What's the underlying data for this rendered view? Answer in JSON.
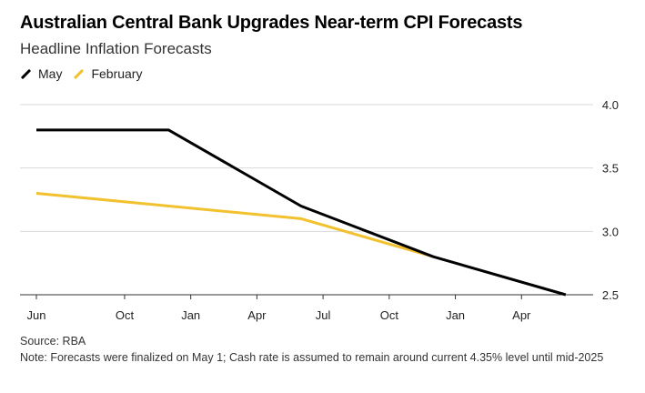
{
  "title": "Australian Central Bank Upgrades Near-term CPI Forecasts",
  "subtitle": "Headline Inflation Forecasts",
  "legend": [
    {
      "label": "May",
      "color": "#000000"
    },
    {
      "label": "February",
      "color": "#f2c12e"
    }
  ],
  "source": "Source: RBA",
  "note": "Note: Forecasts were finalized on May 1; Cash rate is assumed to remain around current 4.35% level until mid-2025",
  "chart_data": {
    "type": "line",
    "title": "Australian Central Bank Upgrades Near-term CPI Forecasts",
    "subtitle": "Headline Inflation Forecasts",
    "x_tick_labels": [
      "Jun",
      "Oct",
      "Jan",
      "Apr",
      "Jul",
      "Oct",
      "Jan",
      "Apr"
    ],
    "x_tick_dates": [
      "2023-06",
      "2023-10",
      "2024-01",
      "2024-04",
      "2024-07",
      "2024-10",
      "2025-01",
      "2025-04"
    ],
    "y_ticks": [
      2.5,
      3.0,
      3.5,
      4.0
    ],
    "y_tick_labels": [
      "2.5",
      "3.0",
      "3.5",
      "4.0"
    ],
    "ylim": [
      2.5,
      4.0
    ],
    "xlim": [
      "2023-06",
      "2025-07"
    ],
    "y_axis_side": "right",
    "grid": "horizontal",
    "legend_position": "top-left",
    "series": [
      {
        "name": "May",
        "color": "#000000",
        "points": [
          {
            "x": "2023-06",
            "y": 3.8
          },
          {
            "x": "2023-12",
            "y": 3.8
          },
          {
            "x": "2024-06",
            "y": 3.2
          },
          {
            "x": "2024-12",
            "y": 2.8
          },
          {
            "x": "2025-06",
            "y": 2.5
          }
        ]
      },
      {
        "name": "February",
        "color": "#f2c12e",
        "points": [
          {
            "x": "2023-06",
            "y": 3.3
          },
          {
            "x": "2024-06",
            "y": 3.1
          },
          {
            "x": "2024-12",
            "y": 2.8
          }
        ]
      }
    ]
  }
}
